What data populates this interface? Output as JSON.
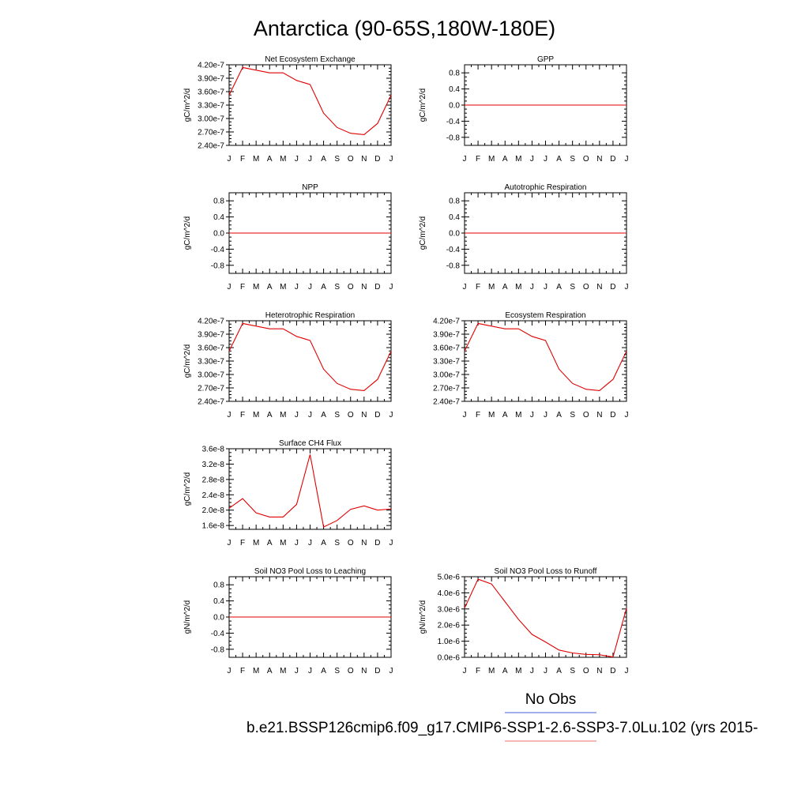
{
  "figure": {
    "title": "Antarctica (90-65S,180W-180E)",
    "legend": {
      "obs_label": "No Obs",
      "model_label": "b.e21.BSSP126cmip6.f09_g17.CMIP6-SSP1-2.6-SSP3-7.0Lu.102 (yrs 2015-",
      "obs_color": "#6a7fe0",
      "model_color": "#f08c8c"
    },
    "line_color": "#e00000"
  },
  "chart_data": [
    {
      "type": "line",
      "title": "Net Ecosystem Exchange",
      "ylabel": "gC/m^2/d",
      "x": [
        "J",
        "F",
        "M",
        "A",
        "M",
        "J",
        "J",
        "A",
        "S",
        "O",
        "N",
        "D",
        "J"
      ],
      "ylim": [
        2.4e-07,
        4.2e-07
      ],
      "yticks": [
        2.4e-07,
        2.7e-07,
        3e-07,
        3.3e-07,
        3.6e-07,
        3.9e-07,
        4.2e-07
      ],
      "yticklabels": [
        "2.40e-7",
        "2.70e-7",
        "3.00e-7",
        "3.30e-7",
        "3.60e-7",
        "3.90e-7",
        "4.20e-7"
      ],
      "values": [
        3.52e-07,
        4.14e-07,
        4.08e-07,
        4.02e-07,
        4.02e-07,
        3.85e-07,
        3.76e-07,
        3.12e-07,
        2.8e-07,
        2.67e-07,
        2.64e-07,
        2.89e-07,
        3.52e-07
      ]
    },
    {
      "type": "line",
      "title": "GPP",
      "ylabel": "gC/m^2/d",
      "x": [
        "J",
        "F",
        "M",
        "A",
        "M",
        "J",
        "J",
        "A",
        "S",
        "O",
        "N",
        "D",
        "J"
      ],
      "ylim": [
        -1.0,
        1.0
      ],
      "yticks": [
        -0.8,
        -0.4,
        0.0,
        0.4,
        0.8
      ],
      "yticklabels": [
        "-0.8",
        "-0.4",
        "0.0",
        "0.4",
        "0.8"
      ],
      "values": [
        0,
        0,
        0,
        0,
        0,
        0,
        0,
        0,
        0,
        0,
        0,
        0,
        0
      ]
    },
    {
      "type": "line",
      "title": "NPP",
      "ylabel": "gC/m^2/d",
      "x": [
        "J",
        "F",
        "M",
        "A",
        "M",
        "J",
        "J",
        "A",
        "S",
        "O",
        "N",
        "D",
        "J"
      ],
      "ylim": [
        -1.0,
        1.0
      ],
      "yticks": [
        -0.8,
        -0.4,
        0.0,
        0.4,
        0.8
      ],
      "yticklabels": [
        "-0.8",
        "-0.4",
        "0.0",
        "0.4",
        "0.8"
      ],
      "values": [
        0,
        0,
        0,
        0,
        0,
        0,
        0,
        0,
        0,
        0,
        0,
        0,
        0
      ]
    },
    {
      "type": "line",
      "title": "Autotrophic Respiration",
      "ylabel": "gC/m^2/d",
      "x": [
        "J",
        "F",
        "M",
        "A",
        "M",
        "J",
        "J",
        "A",
        "S",
        "O",
        "N",
        "D",
        "J"
      ],
      "ylim": [
        -1.0,
        1.0
      ],
      "yticks": [
        -0.8,
        -0.4,
        0.0,
        0.4,
        0.8
      ],
      "yticklabels": [
        "-0.8",
        "-0.4",
        "0.0",
        "0.4",
        "0.8"
      ],
      "values": [
        0,
        0,
        0,
        0,
        0,
        0,
        0,
        0,
        0,
        0,
        0,
        0,
        0
      ]
    },
    {
      "type": "line",
      "title": "Heterotrophic Respiration",
      "ylabel": "gC/m^2/d",
      "x": [
        "J",
        "F",
        "M",
        "A",
        "M",
        "J",
        "J",
        "A",
        "S",
        "O",
        "N",
        "D",
        "J"
      ],
      "ylim": [
        2.4e-07,
        4.2e-07
      ],
      "yticks": [
        2.4e-07,
        2.7e-07,
        3e-07,
        3.3e-07,
        3.6e-07,
        3.9e-07,
        4.2e-07
      ],
      "yticklabels": [
        "2.40e-7",
        "2.70e-7",
        "3.00e-7",
        "3.30e-7",
        "3.60e-7",
        "3.90e-7",
        "4.20e-7"
      ],
      "values": [
        3.52e-07,
        4.14e-07,
        4.08e-07,
        4.02e-07,
        4.02e-07,
        3.85e-07,
        3.76e-07,
        3.12e-07,
        2.8e-07,
        2.67e-07,
        2.64e-07,
        2.89e-07,
        3.52e-07
      ]
    },
    {
      "type": "line",
      "title": "Ecosystem Respiration",
      "ylabel": "",
      "x": [
        "J",
        "F",
        "M",
        "A",
        "M",
        "J",
        "J",
        "A",
        "S",
        "O",
        "N",
        "D",
        "J"
      ],
      "ylim": [
        2.4e-07,
        4.2e-07
      ],
      "yticks": [
        2.4e-07,
        2.7e-07,
        3e-07,
        3.3e-07,
        3.6e-07,
        3.9e-07,
        4.2e-07
      ],
      "yticklabels": [
        "2.40e-7",
        "2.70e-7",
        "3.00e-7",
        "3.30e-7",
        "3.60e-7",
        "3.90e-7",
        "4.20e-7"
      ],
      "values": [
        3.52e-07,
        4.14e-07,
        4.08e-07,
        4.02e-07,
        4.02e-07,
        3.85e-07,
        3.76e-07,
        3.12e-07,
        2.8e-07,
        2.67e-07,
        2.64e-07,
        2.89e-07,
        3.52e-07
      ]
    },
    {
      "type": "line",
      "title": "Surface CH4 Flux",
      "ylabel": "gC/m^2/d",
      "x": [
        "J",
        "F",
        "M",
        "A",
        "M",
        "J",
        "J",
        "A",
        "S",
        "O",
        "N",
        "D",
        "J"
      ],
      "ylim": [
        1.5e-08,
        3.6e-08
      ],
      "yticks": [
        1.6e-08,
        2e-08,
        2.4e-08,
        2.8e-08,
        3.2e-08,
        3.6e-08
      ],
      "yticklabels": [
        "1.6e-8",
        "2.0e-8",
        "2.4e-8",
        "2.8e-8",
        "3.2e-8",
        "3.6e-8"
      ],
      "values": [
        2.05e-08,
        2.3e-08,
        1.93e-08,
        1.82e-08,
        1.82e-08,
        2.15e-08,
        3.45e-08,
        1.56e-08,
        1.73e-08,
        2.02e-08,
        2.11e-08,
        2e-08,
        2.03e-08
      ]
    },
    {
      "type": "line",
      "title": "Soil NO3 Pool Loss to Leaching",
      "ylabel": "gN/m^2/d",
      "x": [
        "J",
        "F",
        "M",
        "A",
        "M",
        "J",
        "J",
        "A",
        "S",
        "O",
        "N",
        "D",
        "J"
      ],
      "ylim": [
        -1.0,
        1.0
      ],
      "yticks": [
        -0.8,
        -0.4,
        0.0,
        0.4,
        0.8
      ],
      "yticklabels": [
        "-0.8",
        "-0.4",
        "0.0",
        "0.4",
        "0.8"
      ],
      "values": [
        0,
        0,
        0,
        0,
        0,
        0,
        0,
        0,
        0,
        0,
        0,
        0,
        0
      ]
    },
    {
      "type": "line",
      "title": "Soil NO3 Pool Loss to Runoff",
      "ylabel": "gN/m^2/d",
      "x": [
        "J",
        "F",
        "M",
        "A",
        "M",
        "J",
        "J",
        "A",
        "S",
        "O",
        "N",
        "D",
        "J"
      ],
      "ylim": [
        0,
        5e-06
      ],
      "yticks": [
        0,
        1e-06,
        2e-06,
        3e-06,
        4e-06,
        5e-06
      ],
      "yticklabels": [
        "0.0e-6",
        "1.0e-6",
        "2.0e-6",
        "3.0e-6",
        "4.0e-6",
        "5.0e-6"
      ],
      "values": [
        3.05e-06,
        4.85e-06,
        4.55e-06,
        3.45e-06,
        2.35e-06,
        1.42e-06,
        9.5e-07,
        4.5e-07,
        2.7e-07,
        1.8e-07,
        1.6e-07,
        2e-08,
        3.05e-06
      ]
    }
  ]
}
